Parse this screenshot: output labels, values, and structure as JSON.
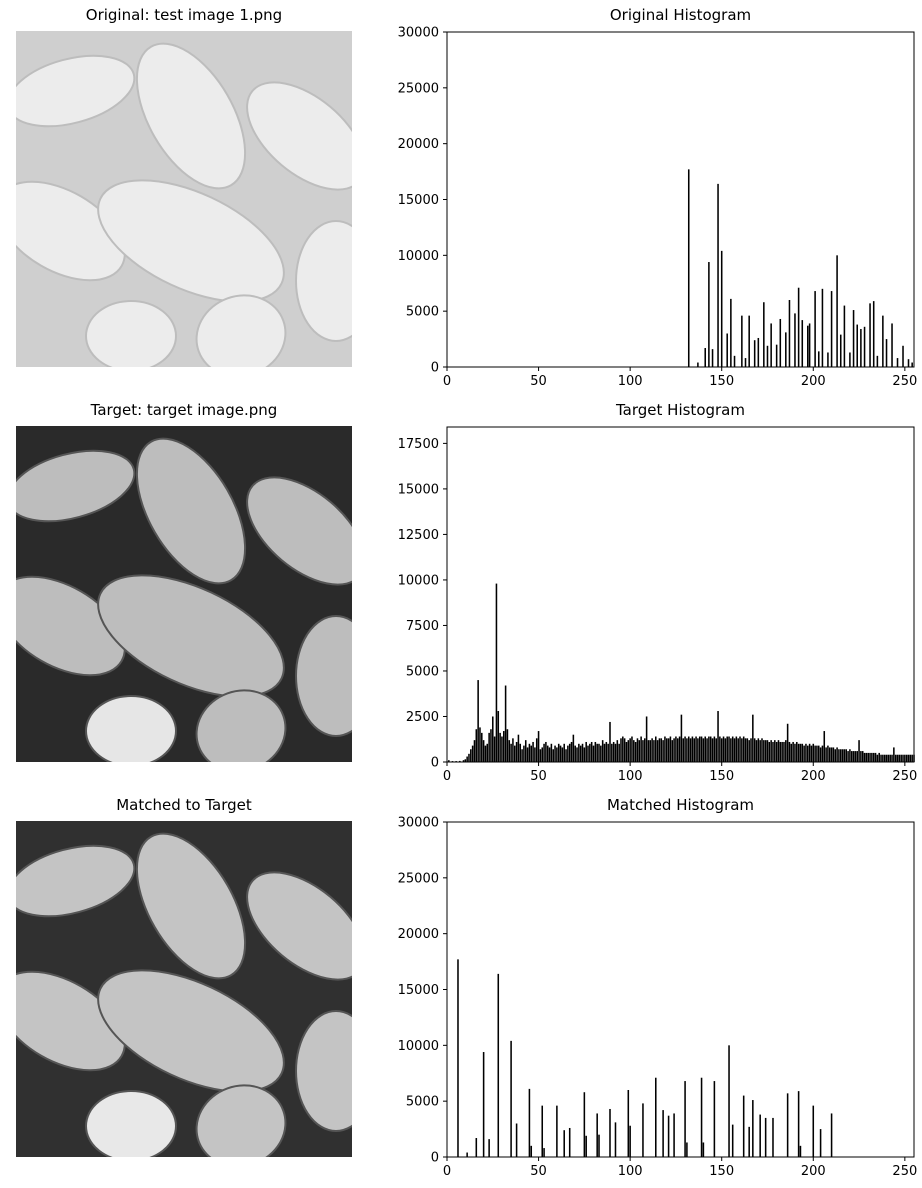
{
  "panels": [
    {
      "image_title": "Original: test image 1.png",
      "image_icon": "pollen-grains-image",
      "image_tone": "washed-out light gray",
      "hist_title": "Original Histogram"
    },
    {
      "image_title": "Target: target image.png",
      "image_icon": "pollen-grains-image",
      "image_tone": "high contrast",
      "hist_title": "Target Histogram"
    },
    {
      "image_title": "Matched to Target",
      "image_icon": "pollen-grains-image",
      "image_tone": "high contrast",
      "hist_title": "Matched Histogram"
    }
  ],
  "chart_data": [
    {
      "type": "bar",
      "title": "Original Histogram",
      "xlabel": "",
      "ylabel": "",
      "xlim": [
        0,
        255
      ],
      "ylim": [
        0,
        30000
      ],
      "xticks": [
        0,
        50,
        100,
        150,
        200,
        250
      ],
      "yticks": [
        0,
        5000,
        10000,
        15000,
        20000,
        25000,
        30000
      ],
      "grid": false,
      "bars": [
        [
          132,
          17700
        ],
        [
          137,
          400
        ],
        [
          141,
          1700
        ],
        [
          143,
          9400
        ],
        [
          145,
          1600
        ],
        [
          148,
          16400
        ],
        [
          150,
          10400
        ],
        [
          153,
          3000
        ],
        [
          155,
          6100
        ],
        [
          157,
          1000
        ],
        [
          161,
          4600
        ],
        [
          163,
          800
        ],
        [
          165,
          4600
        ],
        [
          168,
          2400
        ],
        [
          170,
          2600
        ],
        [
          173,
          5800
        ],
        [
          175,
          1900
        ],
        [
          177,
          3900
        ],
        [
          180,
          2000
        ],
        [
          182,
          4300
        ],
        [
          185,
          3100
        ],
        [
          187,
          6000
        ],
        [
          190,
          4800
        ],
        [
          192,
          7100
        ],
        [
          194,
          4200
        ],
        [
          197,
          3700
        ],
        [
          198,
          3900
        ],
        [
          201,
          6800
        ],
        [
          203,
          1400
        ],
        [
          205,
          7000
        ],
        [
          208,
          1300
        ],
        [
          210,
          6800
        ],
        [
          213,
          10000
        ],
        [
          215,
          2900
        ],
        [
          217,
          5500
        ],
        [
          220,
          1300
        ],
        [
          222,
          5100
        ],
        [
          224,
          3800
        ],
        [
          226,
          3400
        ],
        [
          228,
          3600
        ],
        [
          231,
          5700
        ],
        [
          233,
          5900
        ],
        [
          235,
          1000
        ],
        [
          238,
          4600
        ],
        [
          240,
          2500
        ],
        [
          243,
          3900
        ],
        [
          246,
          800
        ],
        [
          249,
          1900
        ],
        [
          252,
          700
        ],
        [
          254,
          400
        ]
      ]
    },
    {
      "type": "bar",
      "title": "Target Histogram",
      "xlabel": "",
      "ylabel": "",
      "xlim": [
        0,
        255
      ],
      "ylim": [
        0,
        18400
      ],
      "xticks": [
        0,
        50,
        100,
        150,
        200,
        250
      ],
      "yticks": [
        0,
        2500,
        5000,
        7500,
        10000,
        12500,
        15000,
        17500
      ],
      "grid": false,
      "bars": [
        [
          1,
          100
        ],
        [
          3,
          50
        ],
        [
          5,
          50
        ],
        [
          7,
          60
        ],
        [
          9,
          100
        ],
        [
          10,
          150
        ],
        [
          11,
          300
        ],
        [
          12,
          450
        ],
        [
          13,
          700
        ],
        [
          14,
          900
        ],
        [
          15,
          1200
        ],
        [
          16,
          1800
        ],
        [
          17,
          4500
        ],
        [
          18,
          1900
        ],
        [
          19,
          1600
        ],
        [
          20,
          1200
        ],
        [
          21,
          900
        ],
        [
          22,
          1000
        ],
        [
          23,
          1600
        ],
        [
          24,
          1800
        ],
        [
          25,
          2500
        ],
        [
          26,
          1400
        ],
        [
          27,
          9800
        ],
        [
          28,
          2800
        ],
        [
          29,
          1600
        ],
        [
          30,
          1400
        ],
        [
          31,
          1700
        ],
        [
          32,
          4200
        ],
        [
          33,
          1800
        ],
        [
          34,
          1200
        ],
        [
          35,
          1000
        ],
        [
          36,
          1300
        ],
        [
          37,
          900
        ],
        [
          38,
          1100
        ],
        [
          39,
          1500
        ],
        [
          40,
          1000
        ],
        [
          41,
          700
        ],
        [
          42,
          900
        ],
        [
          43,
          1200
        ],
        [
          44,
          800
        ],
        [
          45,
          1000
        ],
        [
          46,
          900
        ],
        [
          47,
          1100
        ],
        [
          48,
          800
        ],
        [
          49,
          1300
        ],
        [
          50,
          1700
        ],
        [
          51,
          700
        ],
        [
          52,
          800
        ],
        [
          53,
          1000
        ],
        [
          54,
          1100
        ],
        [
          55,
          900
        ],
        [
          56,
          800
        ],
        [
          57,
          1000
        ],
        [
          58,
          700
        ],
        [
          59,
          900
        ],
        [
          60,
          800
        ],
        [
          61,
          1000
        ],
        [
          62,
          900
        ],
        [
          63,
          800
        ],
        [
          64,
          1000
        ],
        [
          65,
          700
        ],
        [
          66,
          900
        ],
        [
          67,
          1000
        ],
        [
          68,
          1100
        ],
        [
          69,
          1500
        ],
        [
          70,
          900
        ],
        [
          71,
          800
        ],
        [
          72,
          1000
        ],
        [
          73,
          900
        ],
        [
          74,
          1000
        ],
        [
          75,
          800
        ],
        [
          76,
          1100
        ],
        [
          77,
          900
        ],
        [
          78,
          1000
        ],
        [
          79,
          1100
        ],
        [
          80,
          900
        ],
        [
          81,
          1100
        ],
        [
          82,
          1000
        ],
        [
          83,
          1000
        ],
        [
          84,
          900
        ],
        [
          85,
          1200
        ],
        [
          86,
          1000
        ],
        [
          87,
          1100
        ],
        [
          88,
          1000
        ],
        [
          89,
          2200
        ],
        [
          90,
          1000
        ],
        [
          91,
          1100
        ],
        [
          92,
          1000
        ],
        [
          93,
          1200
        ],
        [
          94,
          1000
        ],
        [
          95,
          1300
        ],
        [
          96,
          1400
        ],
        [
          97,
          1300
        ],
        [
          98,
          1100
        ],
        [
          99,
          1200
        ],
        [
          100,
          1300
        ],
        [
          101,
          1400
        ],
        [
          102,
          1200
        ],
        [
          103,
          1100
        ],
        [
          104,
          1300
        ],
        [
          105,
          1200
        ],
        [
          106,
          1400
        ],
        [
          107,
          1200
        ],
        [
          108,
          1300
        ],
        [
          109,
          2500
        ],
        [
          110,
          1200
        ],
        [
          111,
          1200
        ],
        [
          112,
          1300
        ],
        [
          113,
          1200
        ],
        [
          114,
          1400
        ],
        [
          115,
          1200
        ],
        [
          116,
          1300
        ],
        [
          117,
          1300
        ],
        [
          118,
          1200
        ],
        [
          119,
          1400
        ],
        [
          120,
          1300
        ],
        [
          121,
          1300
        ],
        [
          122,
          1400
        ],
        [
          123,
          1200
        ],
        [
          124,
          1300
        ],
        [
          125,
          1400
        ],
        [
          126,
          1300
        ],
        [
          127,
          1400
        ],
        [
          128,
          2600
        ],
        [
          129,
          1300
        ],
        [
          130,
          1400
        ],
        [
          131,
          1300
        ],
        [
          132,
          1400
        ],
        [
          133,
          1300
        ],
        [
          134,
          1400
        ],
        [
          135,
          1300
        ],
        [
          136,
          1400
        ],
        [
          137,
          1300
        ],
        [
          138,
          1400
        ],
        [
          139,
          1400
        ],
        [
          140,
          1300
        ],
        [
          141,
          1400
        ],
        [
          142,
          1300
        ],
        [
          143,
          1400
        ],
        [
          144,
          1400
        ],
        [
          145,
          1300
        ],
        [
          146,
          1400
        ],
        [
          147,
          1300
        ],
        [
          148,
          2800
        ],
        [
          149,
          1400
        ],
        [
          150,
          1300
        ],
        [
          151,
          1400
        ],
        [
          152,
          1300
        ],
        [
          153,
          1400
        ],
        [
          154,
          1400
        ],
        [
          155,
          1300
        ],
        [
          156,
          1400
        ],
        [
          157,
          1300
        ],
        [
          158,
          1400
        ],
        [
          159,
          1300
        ],
        [
          160,
          1400
        ],
        [
          161,
          1300
        ],
        [
          162,
          1400
        ],
        [
          163,
          1300
        ],
        [
          164,
          1300
        ],
        [
          165,
          1200
        ],
        [
          166,
          1300
        ],
        [
          167,
          2600
        ],
        [
          168,
          1300
        ],
        [
          169,
          1200
        ],
        [
          170,
          1300
        ],
        [
          171,
          1200
        ],
        [
          172,
          1300
        ],
        [
          173,
          1200
        ],
        [
          174,
          1200
        ],
        [
          175,
          1200
        ],
        [
          176,
          1100
        ],
        [
          177,
          1200
        ],
        [
          178,
          1100
        ],
        [
          179,
          1200
        ],
        [
          180,
          1100
        ],
        [
          181,
          1200
        ],
        [
          182,
          1100
        ],
        [
          183,
          1100
        ],
        [
          184,
          1100
        ],
        [
          185,
          1200
        ],
        [
          186,
          2100
        ],
        [
          187,
          1100
        ],
        [
          188,
          1000
        ],
        [
          189,
          1100
        ],
        [
          190,
          1000
        ],
        [
          191,
          1100
        ],
        [
          192,
          1000
        ],
        [
          193,
          1000
        ],
        [
          194,
          1000
        ],
        [
          195,
          900
        ],
        [
          196,
          1000
        ],
        [
          197,
          900
        ],
        [
          198,
          1000
        ],
        [
          199,
          900
        ],
        [
          200,
          1000
        ],
        [
          201,
          900
        ],
        [
          202,
          900
        ],
        [
          203,
          900
        ],
        [
          204,
          800
        ],
        [
          205,
          900
        ],
        [
          206,
          1700
        ],
        [
          207,
          800
        ],
        [
          208,
          900
        ],
        [
          209,
          800
        ],
        [
          210,
          800
        ],
        [
          211,
          800
        ],
        [
          212,
          700
        ],
        [
          213,
          800
        ],
        [
          214,
          700
        ],
        [
          215,
          700
        ],
        [
          216,
          700
        ],
        [
          217,
          700
        ],
        [
          218,
          700
        ],
        [
          219,
          600
        ],
        [
          220,
          700
        ],
        [
          221,
          600
        ],
        [
          222,
          600
        ],
        [
          223,
          600
        ],
        [
          224,
          600
        ],
        [
          225,
          1200
        ],
        [
          226,
          600
        ],
        [
          227,
          600
        ],
        [
          228,
          500
        ],
        [
          229,
          500
        ],
        [
          230,
          500
        ],
        [
          231,
          500
        ],
        [
          232,
          500
        ],
        [
          233,
          500
        ],
        [
          234,
          500
        ],
        [
          235,
          400
        ],
        [
          236,
          500
        ],
        [
          237,
          400
        ],
        [
          238,
          400
        ],
        [
          239,
          400
        ],
        [
          240,
          400
        ],
        [
          241,
          400
        ],
        [
          242,
          400
        ],
        [
          243,
          400
        ],
        [
          244,
          800
        ],
        [
          245,
          400
        ],
        [
          246,
          400
        ],
        [
          247,
          400
        ],
        [
          248,
          400
        ],
        [
          249,
          400
        ],
        [
          250,
          400
        ],
        [
          251,
          400
        ],
        [
          252,
          400
        ],
        [
          253,
          400
        ],
        [
          254,
          400
        ],
        [
          255,
          400
        ]
      ]
    },
    {
      "type": "bar",
      "title": "Matched Histogram",
      "xlabel": "",
      "ylabel": "",
      "xlim": [
        0,
        255
      ],
      "ylim": [
        0,
        30000
      ],
      "xticks": [
        0,
        50,
        100,
        150,
        200,
        250
      ],
      "yticks": [
        0,
        5000,
        10000,
        15000,
        20000,
        25000,
        30000
      ],
      "grid": false,
      "bars": [
        [
          6,
          17700
        ],
        [
          11,
          400
        ],
        [
          16,
          1700
        ],
        [
          20,
          9400
        ],
        [
          23,
          1600
        ],
        [
          28,
          16400
        ],
        [
          35,
          10400
        ],
        [
          38,
          3000
        ],
        [
          45,
          6100
        ],
        [
          46,
          1000
        ],
        [
          52,
          4600
        ],
        [
          53,
          800
        ],
        [
          60,
          4600
        ],
        [
          64,
          2400
        ],
        [
          67,
          2600
        ],
        [
          75,
          5800
        ],
        [
          76,
          1900
        ],
        [
          82,
          3900
        ],
        [
          83,
          2000
        ],
        [
          89,
          4300
        ],
        [
          92,
          3100
        ],
        [
          99,
          6000
        ],
        [
          100,
          2800
        ],
        [
          107,
          4800
        ],
        [
          114,
          7100
        ],
        [
          118,
          4200
        ],
        [
          121,
          3700
        ],
        [
          124,
          3900
        ],
        [
          130,
          6800
        ],
        [
          131,
          1300
        ],
        [
          139,
          7100
        ],
        [
          140,
          1300
        ],
        [
          146,
          6800
        ],
        [
          154,
          10000
        ],
        [
          156,
          2900
        ],
        [
          162,
          5500
        ],
        [
          165,
          2700
        ],
        [
          167,
          5100
        ],
        [
          171,
          3800
        ],
        [
          174,
          3500
        ],
        [
          178,
          3500
        ],
        [
          186,
          5700
        ],
        [
          192,
          5900
        ],
        [
          193,
          1000
        ],
        [
          200,
          4600
        ],
        [
          204,
          2500
        ],
        [
          210,
          3900
        ]
      ]
    }
  ]
}
